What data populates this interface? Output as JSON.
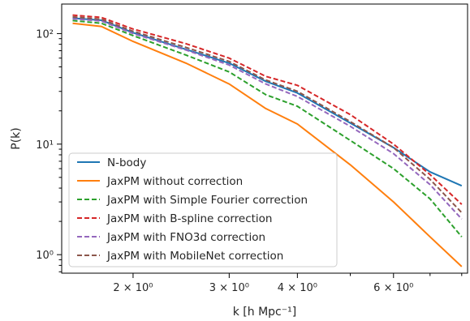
{
  "chart_data": {
    "type": "line",
    "title": "",
    "xlabel": "k [h Mpc⁻¹]",
    "ylabel": "P(k)",
    "x_scale": "log",
    "y_scale": "log",
    "xlim": [
      1.48,
      8.2
    ],
    "ylim": [
      0.68,
      185
    ],
    "grid": false,
    "legend_position": "lower-left",
    "x_ticks": [
      {
        "value": 2,
        "label": "2 × 10⁰"
      },
      {
        "value": 3,
        "label": "3 × 10⁰"
      },
      {
        "value": 4,
        "label": "4 × 10⁰"
      },
      {
        "value": 6,
        "label": "6 × 10⁰"
      }
    ],
    "y_ticks": [
      {
        "value": 1,
        "label": "10⁰"
      },
      {
        "value": 10,
        "label": "10¹"
      },
      {
        "value": 100,
        "label": "10²"
      }
    ],
    "x": [
      1.55,
      1.75,
      2.0,
      2.5,
      3.0,
      3.5,
      4.0,
      5.0,
      6.0,
      7.0,
      8.0
    ],
    "series": [
      {
        "name": "N-body",
        "color": "#1f77b4",
        "dash": "solid",
        "values": [
          138,
          132,
          102,
          72,
          54,
          37,
          29,
          15.5,
          9.3,
          5.6,
          4.2
        ]
      },
      {
        "name": "JaxPM without correction",
        "color": "#ff7f0e",
        "dash": "solid",
        "values": [
          124,
          116,
          85,
          54,
          35,
          21,
          15.2,
          6.5,
          3.0,
          1.45,
          0.78
        ]
      },
      {
        "name": "JaxPM with Simple Fourier correction",
        "color": "#2ca02c",
        "dash": "dashed",
        "values": [
          131,
          124,
          96,
          64,
          45,
          28,
          22,
          10.8,
          6.0,
          3.2,
          1.45
        ]
      },
      {
        "name": "JaxPM with B-spline correction",
        "color": "#d62728",
        "dash": "dashed",
        "values": [
          147,
          140,
          110,
          81,
          60,
          41,
          34,
          18.5,
          10,
          5.3,
          2.85
        ]
      },
      {
        "name": "JaxPM with FNO3d correction",
        "color": "#9467bd",
        "dash": "dashed",
        "values": [
          136,
          130,
          100,
          71,
          52,
          35,
          27,
          14.5,
          8.2,
          4.3,
          2.1
        ]
      },
      {
        "name": "JaxPM with MobileNet correction",
        "color": "#8c564b",
        "dash": "dashed",
        "values": [
          142,
          135,
          105,
          75,
          56,
          38,
          30,
          16,
          9.3,
          4.8,
          2.4
        ]
      }
    ]
  }
}
